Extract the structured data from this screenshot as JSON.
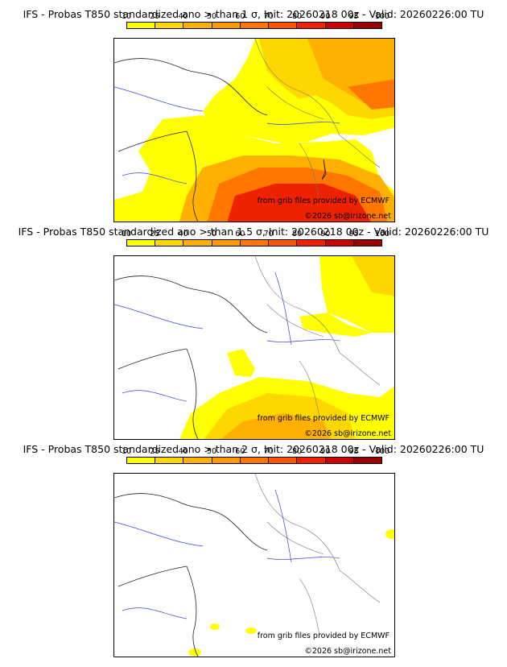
{
  "colorbar": {
    "ticks": [
      "10",
      "25",
      "40",
      "50",
      "60",
      "70",
      "80",
      "90",
      "95",
      "100"
    ],
    "colors": [
      "#ffff00",
      "#ffd700",
      "#ffb000",
      "#ff9900",
      "#ff7700",
      "#ff5500",
      "#ee2200",
      "#cc0000",
      "#990000"
    ]
  },
  "credits": {
    "source": "from grib files provided by ECMWF",
    "copyright": "©2026 sb@irizone.net"
  },
  "panels": [
    {
      "title": "IFS - Probas T850  standardized ano > than 1 σ, Init: 20260218 00z - Valid: 20260226:00 TU",
      "threshold": "1 σ"
    },
    {
      "title": "IFS - Probas T850  standardized ano > than 1.5 σ, Init: 20260218 00z - Valid: 20260226:00 TU",
      "threshold": "1.5 σ"
    },
    {
      "title": "IFS - Probas T850  standardized ano > than 2 σ, Init: 20260218 00z - Valid: 20260226:00 TU",
      "threshold": "2 σ"
    }
  ]
}
